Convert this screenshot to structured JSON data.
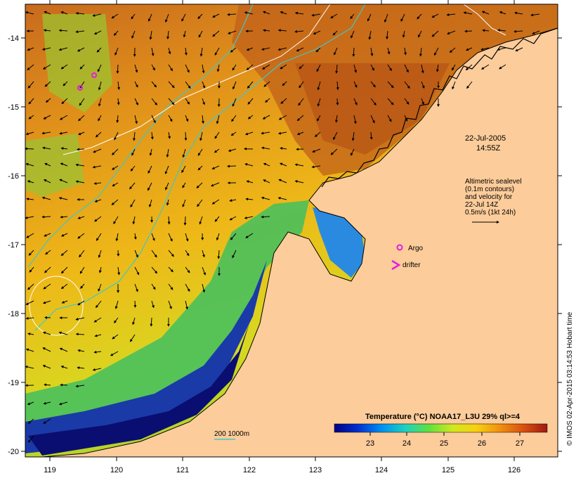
{
  "map": {
    "x_axis": {
      "ticks": [
        "119",
        "120",
        "121",
        "122",
        "123",
        "124",
        "125",
        "126"
      ]
    },
    "y_axis": {
      "ticks": [
        "-14",
        "-15",
        "-16",
        "-17",
        "-18",
        "-19",
        "-20"
      ]
    },
    "colors": {
      "land": "#fccc9a",
      "sst_warm": "#c0601a",
      "sst_mid": "#e8b020",
      "sst_cool": "#58c040",
      "sst_cold": "#0a1478",
      "contour_1000m": "#40c8c8",
      "sealevel_contour": "#ffffff",
      "argo_marker": "#e020e0"
    }
  },
  "annotations": {
    "date": "22-Jul-2005",
    "time": "14:55Z",
    "sealevel_lines": [
      "Altimetric sealevel",
      "(0.1m contours)",
      "and velocity for",
      "22-Jul 14Z",
      "0.5m/s (1kt 24h)"
    ],
    "argo_label": "Argo",
    "drifter_label": "drifter",
    "depth_legend": "200 1000m"
  },
  "colorbar": {
    "title": "Temperature (°C) NOAA17_L3U 29% ql>=4",
    "ticks": [
      "23",
      "24",
      "25",
      "26",
      "27"
    ],
    "stops": [
      "#000080",
      "#0030d0",
      "#0090f0",
      "#20d0c0",
      "#60e040",
      "#d0e820",
      "#f8d010",
      "#f09010",
      "#d85010",
      "#a01810"
    ]
  },
  "credit": "© IMOS 02-Apr-2015 03:14:53 Hobart time"
}
